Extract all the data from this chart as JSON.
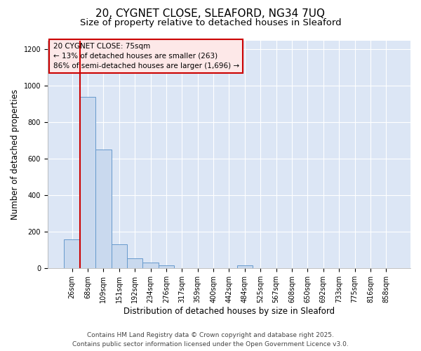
{
  "title_line1": "20, CYGNET CLOSE, SLEAFORD, NG34 7UQ",
  "title_line2": "Size of property relative to detached houses in Sleaford",
  "xlabel": "Distribution of detached houses by size in Sleaford",
  "ylabel": "Number of detached properties",
  "categories": [
    "26sqm",
    "68sqm",
    "109sqm",
    "151sqm",
    "192sqm",
    "234sqm",
    "276sqm",
    "317sqm",
    "359sqm",
    "400sqm",
    "442sqm",
    "484sqm",
    "525sqm",
    "567sqm",
    "608sqm",
    "650sqm",
    "692sqm",
    "733sqm",
    "775sqm",
    "816sqm",
    "858sqm"
  ],
  "values": [
    160,
    940,
    650,
    130,
    55,
    30,
    15,
    0,
    0,
    0,
    0,
    15,
    0,
    0,
    0,
    0,
    0,
    0,
    0,
    0,
    0
  ],
  "bar_color": "#c9d9ee",
  "bar_edge_color": "#6699cc",
  "annotation_line1": "20 CYGNET CLOSE: 75sqm",
  "annotation_line2": "← 13% of detached houses are smaller (263)",
  "annotation_line3": "86% of semi-detached houses are larger (1,696) →",
  "annotation_box_facecolor": "#fde8e8",
  "annotation_box_edgecolor": "#cc0000",
  "vline_color": "#cc0000",
  "vline_x": 1.5,
  "ylim_max": 1250,
  "yticks": [
    0,
    200,
    400,
    600,
    800,
    1000,
    1200
  ],
  "background_color": "#dce6f5",
  "grid_color": "#c0cfe0",
  "footer_line1": "Contains HM Land Registry data © Crown copyright and database right 2025.",
  "footer_line2": "Contains public sector information licensed under the Open Government Licence v3.0.",
  "title_fontsize": 11,
  "subtitle_fontsize": 9.5,
  "axis_label_fontsize": 8.5,
  "tick_fontsize": 7,
  "annotation_fontsize": 7.5,
  "footer_fontsize": 6.5
}
